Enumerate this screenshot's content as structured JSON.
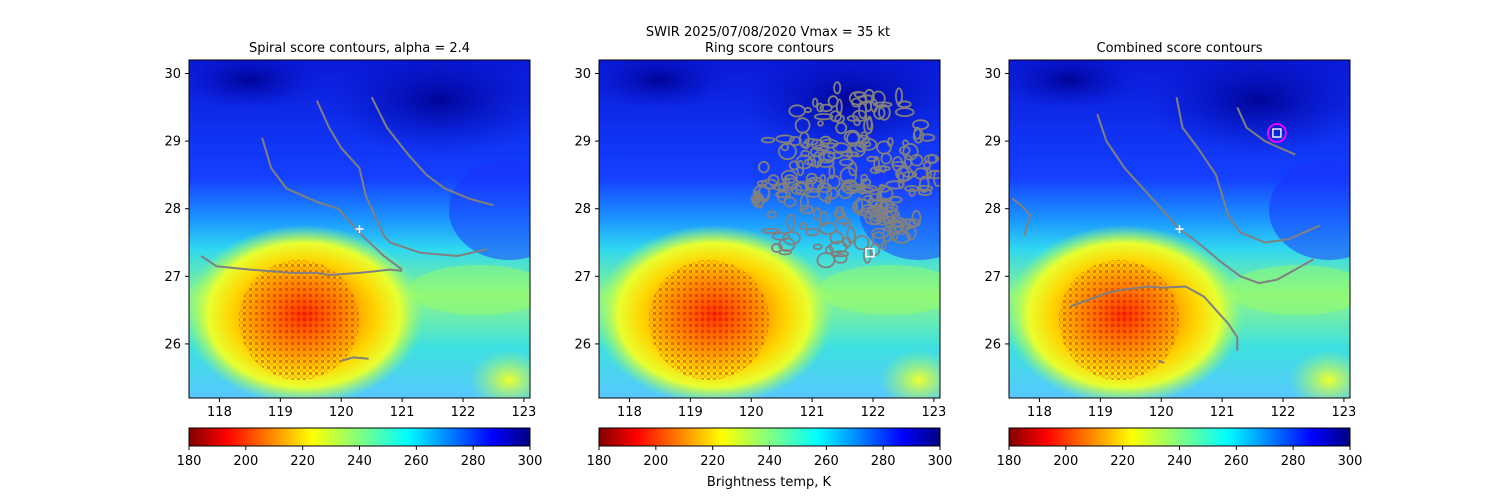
{
  "suptitle_line1": "SWIR  2025/07/08/2020    Vmax = 35 kt",
  "colorbar_label": "Brightness temp, K",
  "chart_data": [
    {
      "type": "heatmap",
      "title": "Spiral score contours, alpha =  2.4",
      "xlim": [
        117.5,
        123.1
      ],
      "ylim": [
        25.2,
        30.2
      ],
      "xticks": [
        "118",
        "119",
        "120",
        "121",
        "122",
        "123"
      ],
      "yticks": [
        "26",
        "27",
        "28",
        "29",
        "30"
      ],
      "colorbar_ticks": [
        "180",
        "200",
        "220",
        "240",
        "260",
        "280",
        "300"
      ],
      "colorbar_range": [
        180,
        300
      ],
      "colormap": "jet_r",
      "contour_color": "#808080",
      "marker": {
        "type": "plus",
        "x": 120.3,
        "y": 27.7,
        "color": "#ffffff"
      },
      "contours": [
        [
          [
            118.7,
            29.05
          ],
          [
            118.85,
            28.6
          ],
          [
            119.1,
            28.3
          ],
          [
            119.6,
            28.1
          ],
          [
            119.95,
            28.0
          ],
          [
            120.35,
            27.6
          ],
          [
            120.7,
            27.3
          ],
          [
            121.0,
            27.1
          ]
        ],
        [
          [
            119.6,
            29.6
          ],
          [
            119.8,
            29.2
          ],
          [
            120.0,
            28.9
          ],
          [
            120.3,
            28.6
          ],
          [
            120.4,
            28.2
          ],
          [
            120.55,
            27.9
          ],
          [
            120.7,
            27.6
          ],
          [
            120.8,
            27.5
          ],
          [
            121.3,
            27.35
          ],
          [
            121.9,
            27.3
          ],
          [
            122.4,
            27.4
          ]
        ],
        [
          [
            120.5,
            29.65
          ],
          [
            120.75,
            29.2
          ],
          [
            121.1,
            28.8
          ],
          [
            121.4,
            28.5
          ],
          [
            121.7,
            28.3
          ],
          [
            122.1,
            28.15
          ],
          [
            122.5,
            28.05
          ]
        ],
        [
          [
            117.7,
            27.3
          ],
          [
            117.95,
            27.15
          ],
          [
            118.5,
            27.1
          ],
          [
            119.2,
            27.05
          ],
          [
            119.6,
            27.05
          ],
          [
            119.8,
            27.02
          ],
          [
            120.3,
            27.05
          ],
          [
            120.8,
            27.1
          ],
          [
            121.0,
            27.08
          ]
        ],
        [
          [
            120.0,
            25.75
          ],
          [
            120.2,
            25.8
          ],
          [
            120.45,
            25.78
          ]
        ]
      ]
    },
    {
      "type": "heatmap",
      "title": "Ring score contours",
      "xlim": [
        117.5,
        123.1
      ],
      "ylim": [
        25.2,
        30.2
      ],
      "xticks": [
        "118",
        "119",
        "120",
        "121",
        "122",
        "123"
      ],
      "yticks": [
        "26",
        "27",
        "28",
        "29",
        "30"
      ],
      "colorbar_ticks": [
        "180",
        "200",
        "220",
        "240",
        "260",
        "280",
        "300"
      ],
      "colorbar_range": [
        180,
        300
      ],
      "colormap": "jet_r",
      "contour_color": "#808080",
      "ring_region": {
        "center": [
          121.55,
          28.45
        ],
        "note": "dense ring score contours over cold cloud region NE of center"
      },
      "marker": {
        "type": "square",
        "x": 121.95,
        "y": 27.35,
        "color": "#ffffff"
      },
      "contours": []
    },
    {
      "type": "heatmap",
      "title": "Combined score contours",
      "xlim": [
        117.5,
        123.1
      ],
      "ylim": [
        25.2,
        30.2
      ],
      "xticks": [
        "118",
        "119",
        "120",
        "121",
        "122",
        "123"
      ],
      "yticks": [
        "26",
        "27",
        "28",
        "29",
        "30"
      ],
      "colorbar_ticks": [
        "180",
        "200",
        "220",
        "240",
        "260",
        "280",
        "300"
      ],
      "colorbar_range": [
        180,
        300
      ],
      "colormap": "jet_r",
      "contour_color": "#808080",
      "marker": {
        "type": "plus",
        "x": 120.3,
        "y": 27.7,
        "color": "#ffffff"
      },
      "marker2": {
        "type": "square-in-circle",
        "x": 121.9,
        "y": 29.12,
        "square_color": "#ffffff",
        "circle_color": "#ff00ff"
      },
      "contours": [
        [
          [
            118.95,
            29.4
          ],
          [
            119.1,
            29.0
          ],
          [
            119.4,
            28.6
          ],
          [
            119.7,
            28.3
          ],
          [
            120.0,
            28.0
          ],
          [
            120.3,
            27.7
          ],
          [
            120.6,
            27.5
          ],
          [
            121.0,
            27.2
          ],
          [
            121.3,
            27.0
          ],
          [
            121.6,
            26.9
          ],
          [
            121.9,
            26.95
          ],
          [
            122.2,
            27.1
          ],
          [
            122.5,
            27.25
          ]
        ],
        [
          [
            120.25,
            29.65
          ],
          [
            120.35,
            29.2
          ],
          [
            120.6,
            28.9
          ],
          [
            120.9,
            28.5
          ],
          [
            121.0,
            28.2
          ],
          [
            121.1,
            27.9
          ],
          [
            121.3,
            27.65
          ],
          [
            121.7,
            27.5
          ],
          [
            122.1,
            27.55
          ],
          [
            122.6,
            27.75
          ]
        ],
        [
          [
            121.25,
            29.5
          ],
          [
            121.4,
            29.2
          ],
          [
            121.7,
            29.0
          ],
          [
            121.95,
            28.9
          ],
          [
            122.2,
            28.8
          ]
        ],
        [
          [
            118.5,
            26.55
          ],
          [
            118.8,
            26.65
          ],
          [
            119.1,
            26.75
          ],
          [
            119.35,
            26.8
          ],
          [
            119.8,
            26.85
          ],
          [
            120.0,
            26.83
          ],
          [
            120.4,
            26.85
          ],
          [
            120.7,
            26.7
          ],
          [
            120.9,
            26.5
          ],
          [
            121.1,
            26.3
          ],
          [
            121.25,
            26.1
          ],
          [
            121.25,
            25.9
          ]
        ],
        [
          [
            117.75,
            27.6
          ],
          [
            117.85,
            27.9
          ],
          [
            117.7,
            28.05
          ],
          [
            117.55,
            28.15
          ]
        ],
        [
          [
            119.95,
            25.75
          ],
          [
            120.05,
            25.72
          ]
        ]
      ]
    }
  ]
}
